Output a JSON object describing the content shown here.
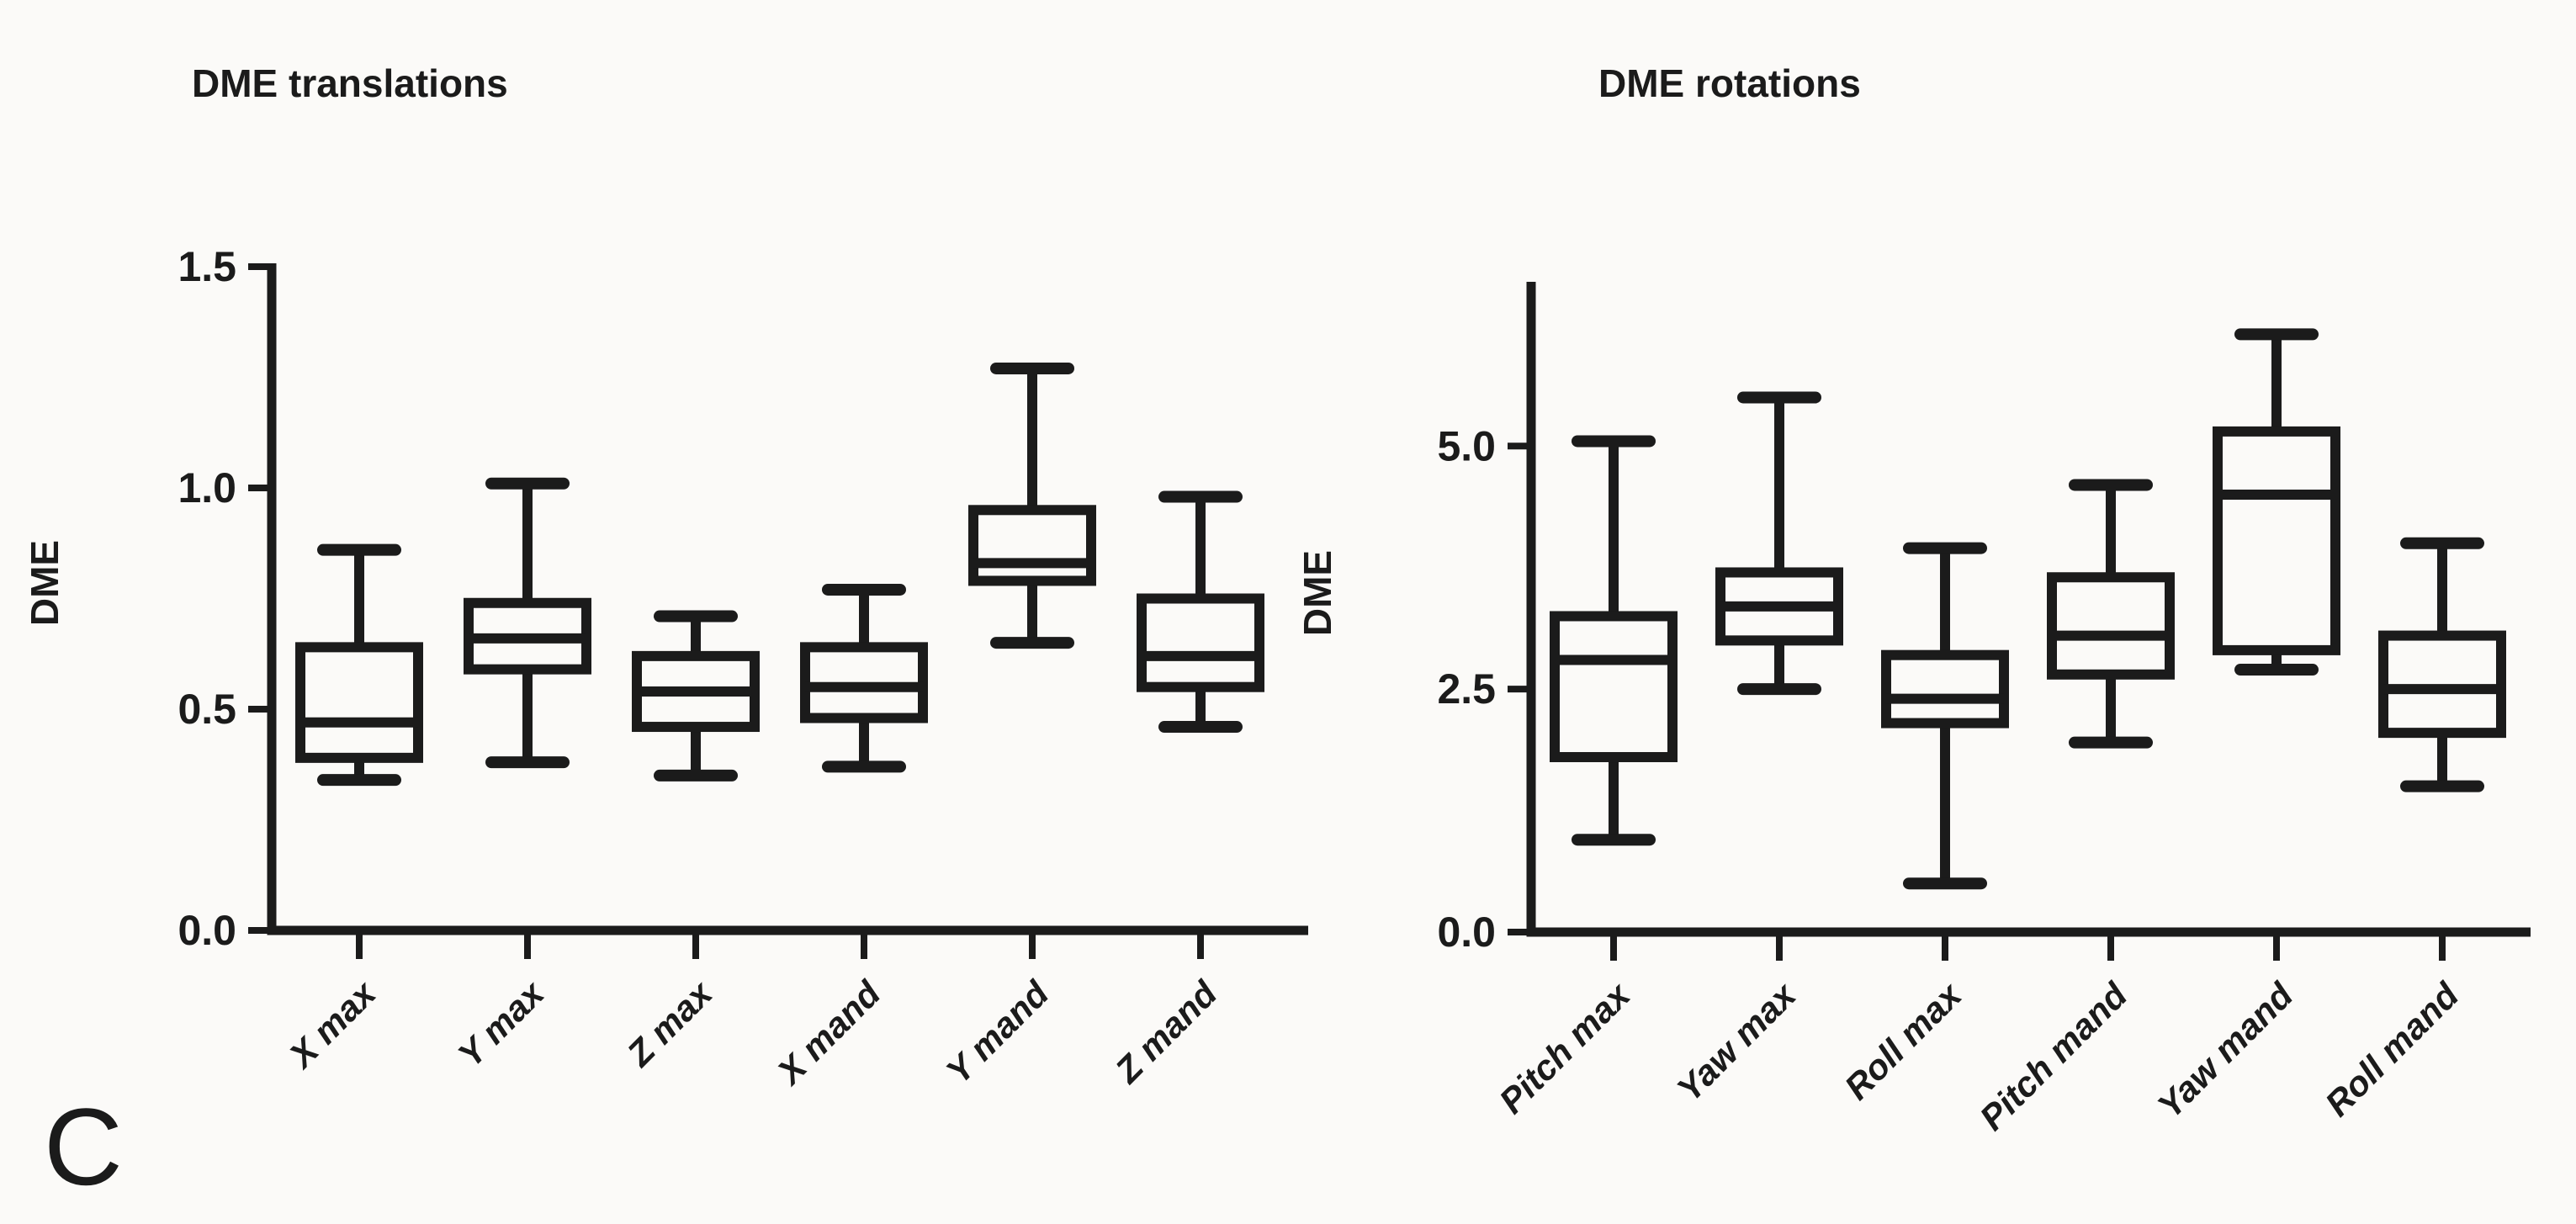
{
  "figure": {
    "panel_label": "C",
    "background": "#fbfaf8",
    "ink": "#1b1b1b"
  },
  "chart_data": [
    {
      "type": "box",
      "title": "DME translations",
      "ylabel": "DME",
      "xlabel": "",
      "ylim": [
        0,
        1.5
      ],
      "yticks": [
        "0.0",
        "0.5",
        "1.0",
        "1.5"
      ],
      "ytick_values": [
        0.0,
        0.5,
        1.0,
        1.5
      ],
      "grid": false,
      "legend": "none",
      "categories": [
        "X max",
        "Y max",
        "Z max",
        "X mand",
        "Y mand",
        "Z mand"
      ],
      "series": [
        {
          "category": "X max",
          "min": 0.34,
          "q1": 0.39,
          "median": 0.47,
          "q3": 0.64,
          "max": 0.86
        },
        {
          "category": "Y max",
          "min": 0.38,
          "q1": 0.59,
          "median": 0.66,
          "q3": 0.74,
          "max": 1.01
        },
        {
          "category": "Z max",
          "min": 0.35,
          "q1": 0.46,
          "median": 0.54,
          "q3": 0.62,
          "max": 0.71
        },
        {
          "category": "X mand",
          "min": 0.37,
          "q1": 0.48,
          "median": 0.55,
          "q3": 0.64,
          "max": 0.77
        },
        {
          "category": "Y mand",
          "min": 0.65,
          "q1": 0.79,
          "median": 0.83,
          "q3": 0.95,
          "max": 1.27
        },
        {
          "category": "Z mand",
          "min": 0.46,
          "q1": 0.55,
          "median": 0.62,
          "q3": 0.75,
          "max": 0.98
        }
      ]
    },
    {
      "type": "box",
      "title": "DME rotations",
      "ylabel": "DME",
      "xlabel": "",
      "ylim": [
        0,
        6.7
      ],
      "yticks": [
        "0.0",
        "2.5",
        "5.0"
      ],
      "ytick_values": [
        0.0,
        2.5,
        5.0
      ],
      "grid": false,
      "legend": "none",
      "categories": [
        "Pitch max",
        "Yaw max",
        "Roll max",
        "Pitch mand",
        "Yaw mand",
        "Roll mand"
      ],
      "series": [
        {
          "category": "Pitch max",
          "min": 0.95,
          "q1": 1.8,
          "median": 2.8,
          "q3": 3.25,
          "max": 5.05
        },
        {
          "category": "Yaw max",
          "min": 2.5,
          "q1": 3.0,
          "median": 3.35,
          "q3": 3.7,
          "max": 5.5
        },
        {
          "category": "Roll max",
          "min": 0.5,
          "q1": 2.15,
          "median": 2.4,
          "q3": 2.85,
          "max": 3.95
        },
        {
          "category": "Pitch mand",
          "min": 1.95,
          "q1": 2.65,
          "median": 3.05,
          "q3": 3.65,
          "max": 4.6
        },
        {
          "category": "Yaw mand",
          "min": 2.7,
          "q1": 2.9,
          "median": 4.5,
          "q3": 5.15,
          "max": 6.15
        },
        {
          "category": "Roll mand",
          "min": 1.5,
          "q1": 2.05,
          "median": 2.5,
          "q3": 3.05,
          "max": 4.0
        }
      ]
    }
  ]
}
